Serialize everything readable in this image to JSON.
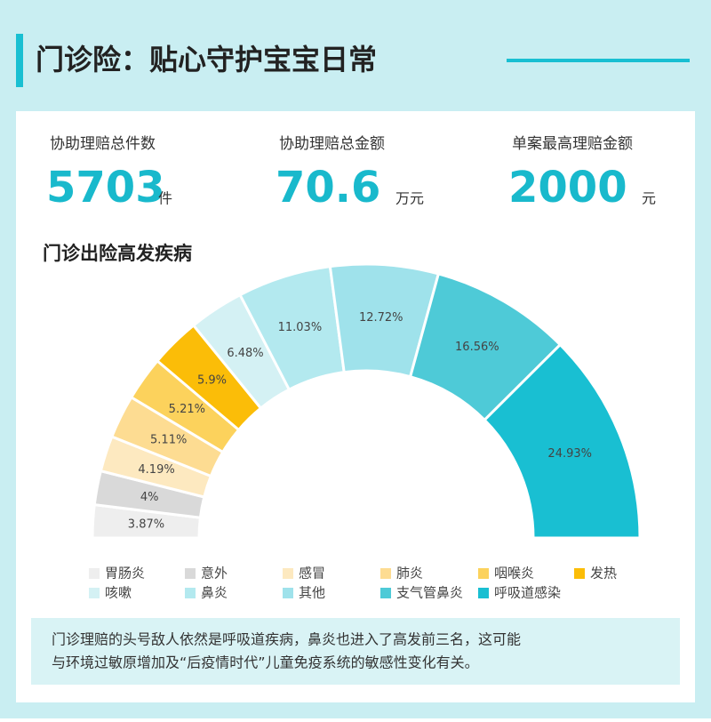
{
  "header": {
    "title": "门诊险：贴心守护宝宝日常"
  },
  "stats": [
    {
      "label": "协助理赔总件数",
      "value": 5703,
      "unit": "件"
    },
    {
      "label": "协助理赔总金额",
      "value": 70.6,
      "unit": "万元"
    },
    {
      "label": "单案最高理赔金额",
      "value": 2000,
      "unit": "元"
    }
  ],
  "chart_data": {
    "type": "pie",
    "title": "门诊出险高发疾病",
    "categories": [
      "胃肠炎",
      "意外",
      "感冒",
      "肺炎",
      "咽喉炎",
      "发热",
      "咳嗽",
      "鼻炎",
      "其他",
      "支气管鼻炎",
      "呼吸道感染"
    ],
    "values": [
      3.87,
      4,
      4.19,
      5.11,
      5.21,
      5.9,
      6.48,
      11.03,
      12.72,
      16.56,
      24.93
    ],
    "value_labels": [
      "3.87%",
      "4%",
      "4.19%",
      "5.11%",
      "5.21%",
      "5.9%",
      "6.48%",
      "11.03%",
      "12.72%",
      "16.56%",
      "24.93%"
    ],
    "colors": [
      "#eeeeee",
      "#d9d9d9",
      "#fde9c0",
      "#fddc92",
      "#fcd25c",
      "#fbbd08",
      "#d4f1f4",
      "#b3e9ef",
      "#9fe2eb",
      "#4ecad7",
      "#19bfd2"
    ]
  },
  "note": [
    "门诊理赔的头号敌人依然是呼吸道疾病，鼻炎也进入了高发前三名，这可能",
    "与环境过敏原增加及“后疫情时代”儿童免疫系统的敏感性变化有关。"
  ]
}
